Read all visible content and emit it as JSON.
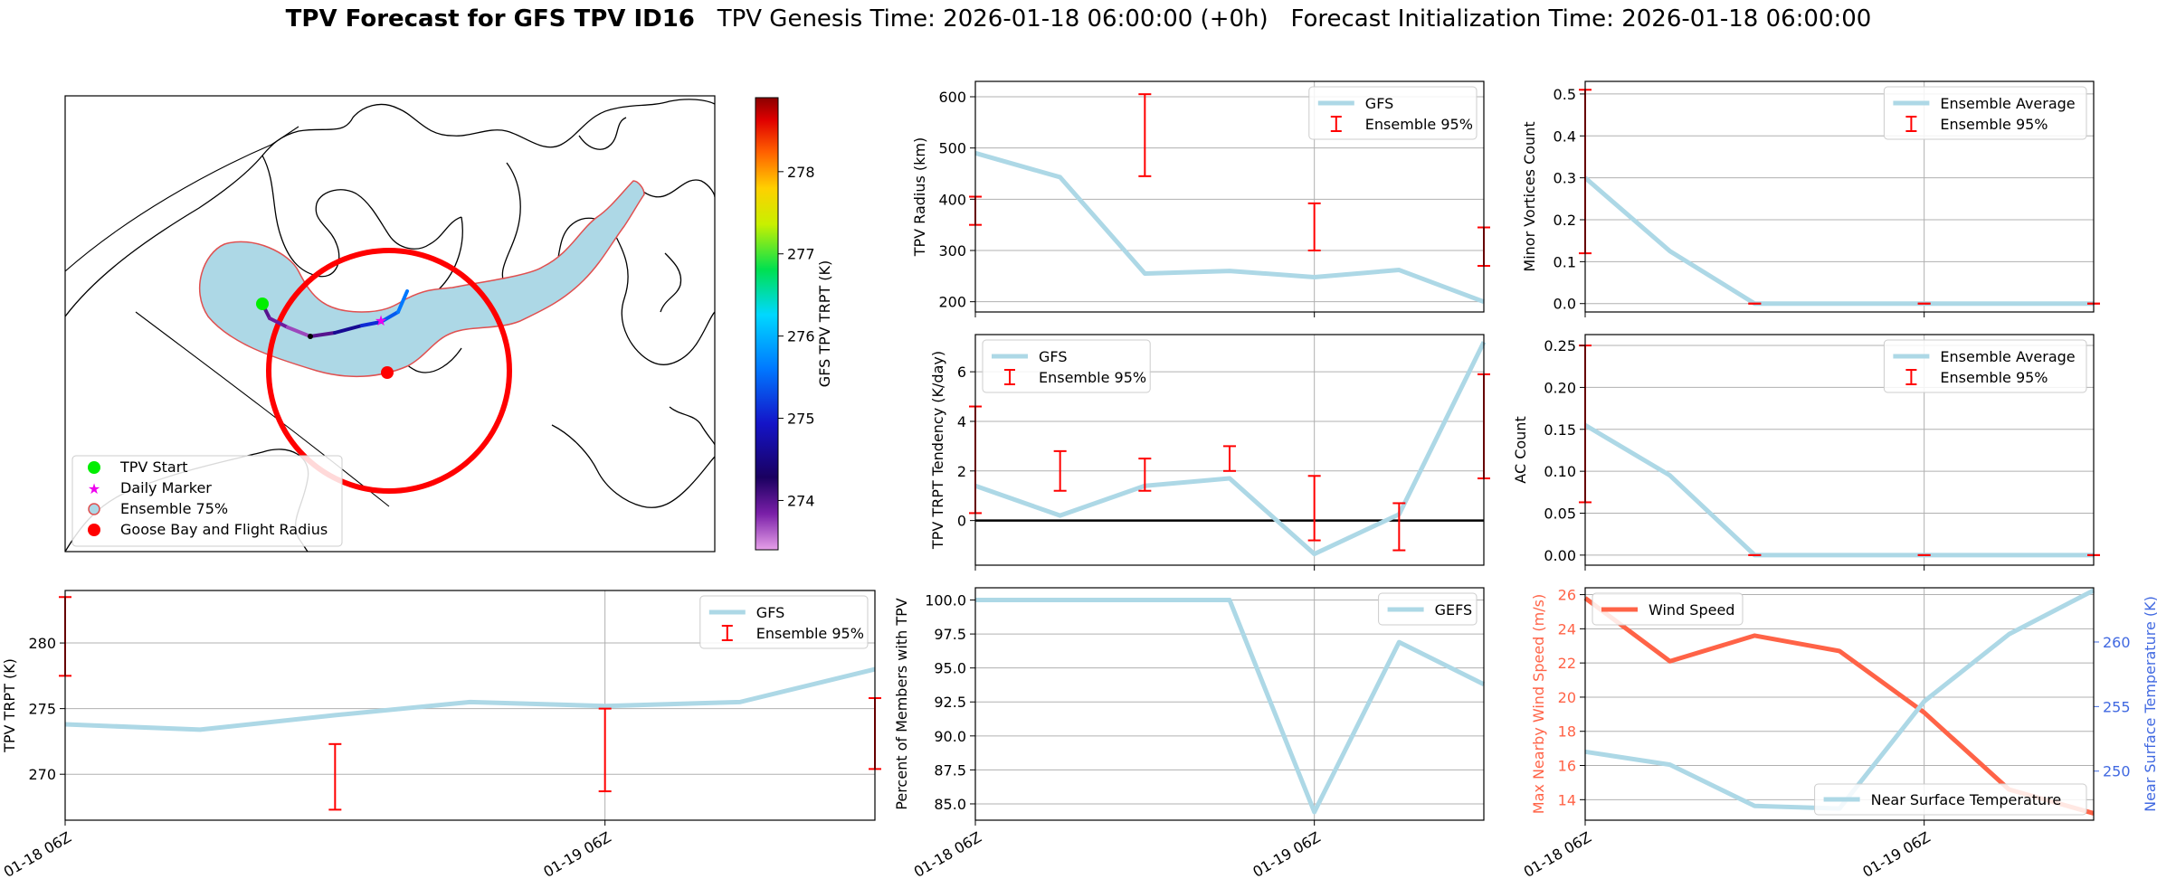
{
  "header": {
    "title_bold": "TPV Forecast for GFS TPV ID16",
    "genesis": "TPV Genesis Time: 2026-01-18 06:00:00 (+0h)",
    "init": "Forecast Initialization Time: 2026-01-18 06:00:00"
  },
  "colors": {
    "model_line": "#add8e6",
    "errorbar": "#ff0000",
    "wind": "#ff6347",
    "temp_axis": "#4169e1",
    "grid": "#b0b0b0",
    "fill75": "#add8e6",
    "fill75_edge": "#e05050",
    "goose": "#ff0000",
    "start": "#00ee00",
    "daily": "#ee00ee"
  },
  "map": {
    "colorbar_label": "GFS TPV TRPT (K)",
    "colorbar_ticks": [
      "274",
      "275",
      "276",
      "277",
      "278"
    ],
    "colorbar_range": [
      273.4,
      278.9
    ],
    "legend": [
      {
        "label": "TPV Start",
        "marker": "start-dot"
      },
      {
        "label": "Daily Marker",
        "marker": "daily-star"
      },
      {
        "label": "Ensemble 75%",
        "marker": "fill-circle"
      },
      {
        "label": "Goose Bay and Flight Radius",
        "marker": "red-dot"
      }
    ],
    "track": {
      "lon_lat_note": "",
      "temps": [
        274.0,
        273.9,
        273.7,
        274.0,
        274.6,
        275.1,
        275.4,
        275.6
      ]
    }
  },
  "chart_data": [
    {
      "id": "radius",
      "type": "line",
      "ylabel": "TPV Radius (km)",
      "ylim": [
        180,
        630
      ],
      "yticks": [
        "200",
        "300",
        "400",
        "500",
        "600"
      ],
      "ytick_values": [
        200,
        300,
        400,
        500,
        600
      ],
      "legend": [
        "GFS",
        "Ensemble 95%"
      ],
      "x": [
        0,
        1,
        2,
        3,
        4,
        5,
        6
      ],
      "series": [
        {
          "name": "GFS",
          "values": [
            490,
            443,
            255,
            260,
            248,
            262,
            200
          ]
        }
      ],
      "errorbars": [
        [
          350,
          405
        ],
        [
          null,
          null
        ],
        [
          445,
          605
        ],
        [
          null,
          null
        ],
        [
          300,
          392
        ],
        [
          null,
          null
        ],
        [
          270,
          345
        ]
      ]
    },
    {
      "id": "minor",
      "type": "line",
      "ylabel": "Minor Vortices Count",
      "ylim": [
        -0.02,
        0.53
      ],
      "yticks": [
        "0.0",
        "0.1",
        "0.2",
        "0.3",
        "0.4",
        "0.5"
      ],
      "ytick_values": [
        0.0,
        0.1,
        0.2,
        0.3,
        0.4,
        0.5
      ],
      "legend": [
        "Ensemble Average",
        "Ensemble 95%"
      ],
      "x": [
        0,
        1,
        2,
        3,
        4,
        5,
        6
      ],
      "series": [
        {
          "name": "Ensemble Average",
          "values": [
            0.3,
            0.125,
            0,
            0,
            0,
            0,
            0
          ]
        }
      ],
      "errorbars": [
        [
          0.12,
          0.51
        ],
        [
          null,
          null
        ],
        [
          0,
          0
        ],
        [
          null,
          null
        ],
        [
          0,
          0
        ],
        [
          null,
          null
        ],
        [
          0,
          0
        ]
      ]
    },
    {
      "id": "tendency",
      "type": "line",
      "ylabel": "TPV TRPT Tendency (K/day)",
      "ylim": [
        -1.8,
        7.5
      ],
      "yticks": [
        "0",
        "2",
        "4",
        "6"
      ],
      "ytick_values": [
        0,
        2,
        4,
        6
      ],
      "legend": [
        "GFS",
        "Ensemble 95%"
      ],
      "x": [
        0,
        1,
        2,
        3,
        4,
        5,
        6
      ],
      "series": [
        {
          "name": "GFS",
          "values": [
            1.4,
            0.2,
            1.4,
            1.7,
            -1.35,
            0.25,
            7.2
          ]
        }
      ],
      "errorbars": [
        [
          0.3,
          4.6
        ],
        [
          1.2,
          2.8
        ],
        [
          1.2,
          2.5
        ],
        [
          2.0,
          3.0
        ],
        [
          -0.8,
          1.8
        ],
        [
          -1.2,
          0.7
        ],
        [
          1.7,
          5.9
        ]
      ]
    },
    {
      "id": "ac",
      "type": "line",
      "ylabel": "AC Count",
      "ylim": [
        -0.012,
        0.263
      ],
      "yticks": [
        "0.00",
        "0.05",
        "0.10",
        "0.15",
        "0.20",
        "0.25"
      ],
      "ytick_values": [
        0,
        0.05,
        0.1,
        0.15,
        0.2,
        0.25
      ],
      "legend": [
        "Ensemble Average",
        "Ensemble 95%"
      ],
      "x": [
        0,
        1,
        2,
        3,
        4,
        5,
        6
      ],
      "series": [
        {
          "name": "Ensemble Average",
          "values": [
            0.155,
            0.095,
            0,
            0,
            0,
            0,
            0
          ]
        }
      ],
      "errorbars": [
        [
          0.063,
          0.25
        ],
        [
          null,
          null
        ],
        [
          0,
          0
        ],
        [
          null,
          null
        ],
        [
          0,
          0
        ],
        [
          null,
          null
        ],
        [
          0,
          0
        ]
      ]
    },
    {
      "id": "trpt",
      "type": "line",
      "ylabel": "TPV TRPT (K)",
      "ylim": [
        266.5,
        284
      ],
      "yticks": [
        "270",
        "275",
        "280"
      ],
      "ytick_values": [
        270,
        275,
        280
      ],
      "legend": [
        "GFS",
        "Ensemble 95%"
      ],
      "x": [
        0,
        1,
        2,
        3,
        4,
        5,
        6
      ],
      "series": [
        {
          "name": "GFS",
          "values": [
            273.8,
            273.4,
            274.5,
            275.5,
            275.2,
            275.5,
            278
          ]
        }
      ],
      "errorbars": [
        [
          277.5,
          283.5
        ],
        [
          null,
          null
        ],
        [
          267.3,
          272.3
        ],
        [
          null,
          null
        ],
        [
          268.7,
          275
        ],
        [
          null,
          null
        ],
        [
          270.4,
          275.8
        ]
      ]
    },
    {
      "id": "members",
      "type": "line",
      "ylabel": "Percent of Members with TPV",
      "ylim": [
        83.8,
        100.9
      ],
      "yticks": [
        "85.0",
        "87.5",
        "90.0",
        "92.5",
        "95.0",
        "97.5",
        "100.0"
      ],
      "ytick_values": [
        85,
        87.5,
        90,
        92.5,
        95,
        97.5,
        100
      ],
      "legend": [
        "GEFS"
      ],
      "x": [
        0,
        1,
        2,
        3,
        4,
        5,
        6
      ],
      "series": [
        {
          "name": "GEFS",
          "values": [
            100,
            100,
            100,
            100,
            84.4,
            96.9,
            93.8
          ]
        }
      ]
    },
    {
      "id": "wind",
      "type": "line",
      "ylabel": "Max Nearby Wind Speed (m/s)",
      "ylim": [
        12.8,
        26.4
      ],
      "yticks": [
        "14",
        "16",
        "18",
        "20",
        "22",
        "24",
        "26"
      ],
      "ytick_values": [
        14,
        16,
        18,
        20,
        22,
        24,
        26
      ],
      "y2label": "Near Surface Temperature (K)",
      "y2lim": [
        246.2,
        264.2
      ],
      "y2ticks": [
        "250",
        "255",
        "260"
      ],
      "y2tick_values": [
        250,
        255,
        260
      ],
      "legend": [
        "Wind Speed"
      ],
      "legend2": [
        "Near Surface Temperature"
      ],
      "x": [
        0,
        1,
        2,
        3,
        4,
        5,
        6
      ],
      "series": [
        {
          "name": "Wind Speed",
          "values": [
            25.8,
            22.1,
            23.6,
            22.7,
            19.1,
            14.6,
            13.2
          ]
        },
        {
          "name": "Near Surface Temperature",
          "values": [
            251.5,
            250.5,
            247.3,
            247.1,
            255.4,
            260.6,
            264
          ]
        }
      ]
    }
  ],
  "xaxis": {
    "ticks": [
      "01-18 06Z",
      "01-19 06Z"
    ],
    "tick_positions": [
      0,
      4
    ]
  }
}
